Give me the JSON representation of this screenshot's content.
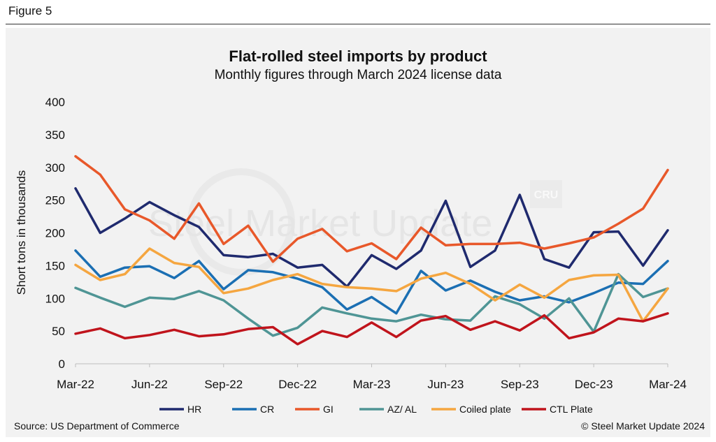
{
  "figure_label": "Figure 5",
  "source": "Source: US Department of Commerce",
  "copyright": "© Steel Market Update 2024",
  "watermark": "Steel Market Update",
  "logo_text": "CRU",
  "colors": {
    "HR": "#1f2a6e",
    "CR": "#1b6fb3",
    "GI": "#e8582a",
    "AZ/ AL": "#4f9595",
    "Coiled plate": "#f5a640",
    "CTL Plate": "#c0141c"
  },
  "chart_data": {
    "type": "line",
    "title": "Flat-rolled steel imports by product",
    "subtitle": "Monthly figures through March 2024 license data",
    "ylabel": "Short tons in thousands",
    "xlabel": "",
    "ylim": [
      0,
      400
    ],
    "yticks": [
      0,
      50,
      100,
      150,
      200,
      250,
      300,
      350,
      400
    ],
    "x_tick_labels": [
      "Mar-22",
      "Jun-22",
      "Sep-22",
      "Dec-22",
      "Mar-23",
      "Jun-23",
      "Sep-23",
      "Dec-23",
      "Mar-24"
    ],
    "categories": [
      "Mar-22",
      "Apr-22",
      "May-22",
      "Jun-22",
      "Jul-22",
      "Aug-22",
      "Sep-22",
      "Oct-22",
      "Nov-22",
      "Dec-22",
      "Jan-23",
      "Feb-23",
      "Mar-23",
      "Apr-23",
      "May-23",
      "Jun-23",
      "Jul-23",
      "Aug-23",
      "Sep-23",
      "Oct-23",
      "Nov-23",
      "Dec-23",
      "Jan-24",
      "Feb-24",
      "Mar-24"
    ],
    "legend": "bottom",
    "series": [
      {
        "name": "HR",
        "values": [
          268,
          200,
          222,
          247,
          227,
          209,
          166,
          163,
          168,
          147,
          151,
          118,
          166,
          145,
          173,
          249,
          148,
          173,
          258,
          160,
          147,
          201,
          202,
          150,
          204
        ]
      },
      {
        "name": "CR",
        "values": [
          173,
          133,
          147,
          149,
          131,
          157,
          114,
          143,
          140,
          130,
          117,
          83,
          102,
          77,
          142,
          112,
          127,
          110,
          97,
          103,
          94,
          108,
          124,
          122,
          157
        ]
      },
      {
        "name": "GI",
        "values": [
          317,
          289,
          236,
          219,
          191,
          245,
          183,
          211,
          156,
          191,
          206,
          172,
          184,
          160,
          208,
          181,
          183,
          183,
          185,
          176,
          184,
          193,
          214,
          237,
          296
        ]
      },
      {
        "name": "AZ/ AL",
        "values": [
          116,
          101,
          87,
          101,
          99,
          111,
          97,
          69,
          43,
          55,
          86,
          77,
          69,
          65,
          75,
          68,
          66,
          103,
          91,
          69,
          100,
          49,
          137,
          102,
          115
        ]
      },
      {
        "name": "Coiled plate",
        "values": [
          151,
          128,
          137,
          176,
          154,
          148,
          108,
          115,
          128,
          137,
          122,
          117,
          115,
          111,
          130,
          139,
          122,
          97,
          121,
          101,
          128,
          135,
          136,
          65,
          115
        ]
      },
      {
        "name": "CTL Plate",
        "values": [
          46,
          54,
          39,
          44,
          52,
          42,
          45,
          53,
          56,
          30,
          50,
          41,
          63,
          41,
          66,
          73,
          52,
          65,
          51,
          74,
          39,
          48,
          69,
          65,
          77
        ]
      }
    ]
  }
}
